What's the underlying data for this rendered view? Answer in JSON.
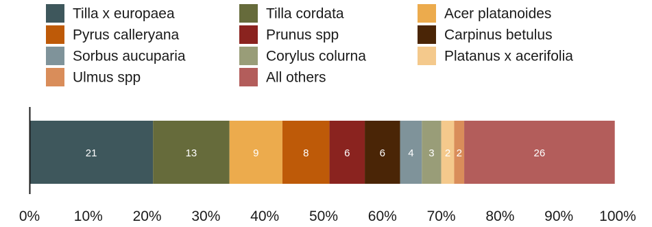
{
  "chart_data": {
    "type": "bar",
    "orientation": "horizontal",
    "stacked": true,
    "title": "",
    "xlabel": "",
    "ylabel": "",
    "xlim": [
      0,
      100
    ],
    "x_ticks": [
      "0%",
      "10%",
      "20%",
      "30%",
      "40%",
      "50%",
      "60%",
      "70%",
      "80%",
      "90%",
      "100%"
    ],
    "grid": false,
    "legend_position": "top",
    "series": [
      {
        "name": "Tilla x europaea",
        "value": 21,
        "label": "21",
        "color": "#3e575c"
      },
      {
        "name": "Tilla cordata",
        "value": 13,
        "label": "13",
        "color": "#666b3b"
      },
      {
        "name": "Acer platanoides",
        "value": 9,
        "label": "9",
        "color": "#ecab4d"
      },
      {
        "name": "Pyrus calleryana",
        "value": 8,
        "label": "8",
        "color": "#be5a08"
      },
      {
        "name": "Prunus spp",
        "value": 6,
        "label": "6",
        "color": "#8a231f"
      },
      {
        "name": "Carpinus betulus",
        "value": 6,
        "label": "6",
        "color": "#4a2506"
      },
      {
        "name": "Sorbus aucuparia",
        "value": 3.7,
        "label": "4",
        "color": "#7f939a"
      },
      {
        "name": "Corylus colurna",
        "value": 3.3,
        "label": "3",
        "color": "#999d78"
      },
      {
        "name": "Platanus x acerifolia",
        "value": 2.2,
        "label": "2",
        "color": "#f4c98c"
      },
      {
        "name": "Ulmus spp",
        "value": 1.7,
        "label": "2",
        "color": "#d98d5a"
      },
      {
        "name": "All others",
        "value": 25.6,
        "label": "26",
        "color": "#b35d5b"
      }
    ]
  }
}
